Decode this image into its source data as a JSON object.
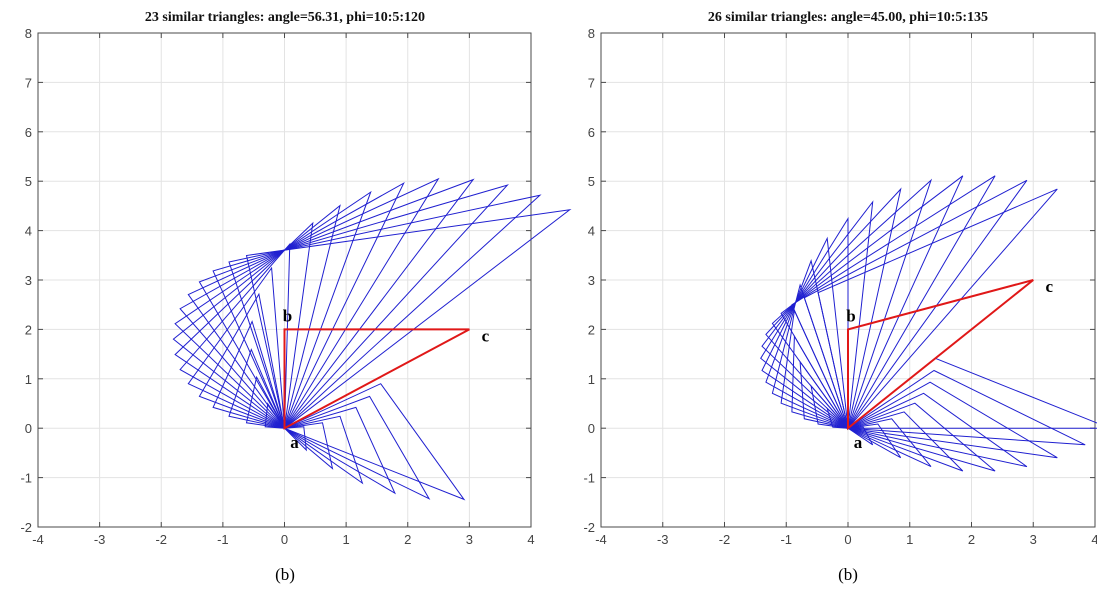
{
  "chart_data": [
    {
      "type": "line",
      "title": "23 similar triangles: angle=56.31, phi=10:5:120",
      "caption": "(b)",
      "xlim": [
        -4,
        4
      ],
      "ylim": [
        -2,
        8
      ],
      "xticks": [
        -4,
        -3,
        -2,
        -1,
        0,
        1,
        2,
        3,
        4
      ],
      "yticks": [
        -2,
        -1,
        0,
        1,
        2,
        3,
        4,
        5,
        6,
        7,
        8
      ],
      "grid": true,
      "triangle_count": 23,
      "scale_angle_deg": 56.31,
      "phi_start_deg": 10,
      "phi_step_deg": 5,
      "phi_end_deg": 120,
      "base_triangle": {
        "a": [
          0,
          0
        ],
        "b": [
          0,
          2
        ],
        "c": [
          3,
          2
        ]
      },
      "vertex_labels": [
        "a",
        "b",
        "c"
      ],
      "colors": {
        "family": "#2020d0",
        "base": "#e01818"
      }
    },
    {
      "type": "line",
      "title": "26 similar triangles: angle=45.00, phi=10:5:135",
      "caption": "(b)",
      "xlim": [
        -4,
        4
      ],
      "ylim": [
        -2,
        8
      ],
      "xticks": [
        -4,
        -3,
        -2,
        -1,
        0,
        1,
        2,
        3,
        4
      ],
      "yticks": [
        -2,
        -1,
        0,
        1,
        2,
        3,
        4,
        5,
        6,
        7,
        8
      ],
      "grid": true,
      "triangle_count": 26,
      "scale_angle_deg": 45.0,
      "phi_start_deg": 10,
      "phi_step_deg": 5,
      "phi_end_deg": 135,
      "base_triangle": {
        "a": [
          0,
          0
        ],
        "b": [
          0,
          2
        ],
        "c": [
          3,
          3
        ]
      },
      "vertex_labels": [
        "a",
        "b",
        "c"
      ],
      "colors": {
        "family": "#2020d0",
        "base": "#e01818"
      }
    }
  ]
}
